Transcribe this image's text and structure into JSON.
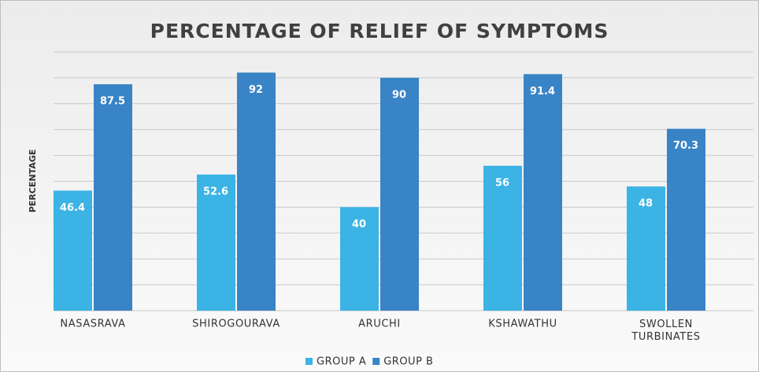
{
  "chart_data": {
    "type": "bar",
    "title": "PERCENTAGE OF RELIEF  OF SYMPTOMS",
    "y_label": "PERCENTAGE",
    "categories": [
      "NASASRAVA",
      "SHIROGOURAVA",
      "ARUCHI",
      "KSHAWATHU",
      "SWOLLEN TURBINATES"
    ],
    "series": [
      {
        "name": "GROUP A",
        "color": "#3bb3e4",
        "values": [
          46.4,
          52.6,
          40,
          56,
          48
        ]
      },
      {
        "name": "GROUP B",
        "color": "#3984c6",
        "values": [
          87.5,
          92,
          90,
          91.4,
          70.3
        ]
      }
    ],
    "ylim": [
      0,
      100
    ],
    "yticks": [
      0,
      10,
      20,
      30,
      40,
      50,
      60,
      70,
      80,
      90,
      100
    ],
    "grid": true,
    "legend": "bottom"
  }
}
